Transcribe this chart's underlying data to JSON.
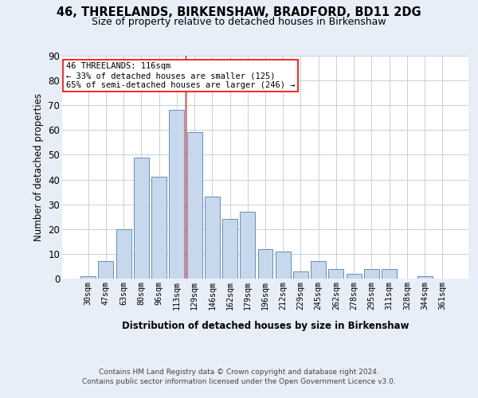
{
  "title1": "46, THREELANDS, BIRKENSHAW, BRADFORD, BD11 2DG",
  "title2": "Size of property relative to detached houses in Birkenshaw",
  "xlabel": "Distribution of detached houses by size in Birkenshaw",
  "ylabel": "Number of detached properties",
  "footnote1": "Contains HM Land Registry data © Crown copyright and database right 2024.",
  "footnote2": "Contains public sector information licensed under the Open Government Licence v3.0.",
  "categories": [
    "30sqm",
    "47sqm",
    "63sqm",
    "80sqm",
    "96sqm",
    "113sqm",
    "129sqm",
    "146sqm",
    "162sqm",
    "179sqm",
    "196sqm",
    "212sqm",
    "229sqm",
    "245sqm",
    "262sqm",
    "278sqm",
    "295sqm",
    "311sqm",
    "328sqm",
    "344sqm",
    "361sqm"
  ],
  "values": [
    1,
    7,
    20,
    49,
    41,
    68,
    59,
    33,
    24,
    27,
    12,
    11,
    3,
    7,
    4,
    2,
    4,
    4,
    0,
    1,
    0
  ],
  "bar_color": "#c8d8ec",
  "bar_edge_color": "#6090b8",
  "vline_x": 5.5,
  "vline_color": "red",
  "annotation_title": "46 THREELANDS: 116sqm",
  "annotation_line1": "← 33% of detached houses are smaller (125)",
  "annotation_line2": "65% of semi-detached houses are larger (246) →",
  "ylim": [
    0,
    90
  ],
  "yticks": [
    0,
    10,
    20,
    30,
    40,
    50,
    60,
    70,
    80,
    90
  ],
  "background_color": "#e8eef8",
  "plot_bg_color": "#ffffff",
  "grid_color": "#c8d0dc"
}
